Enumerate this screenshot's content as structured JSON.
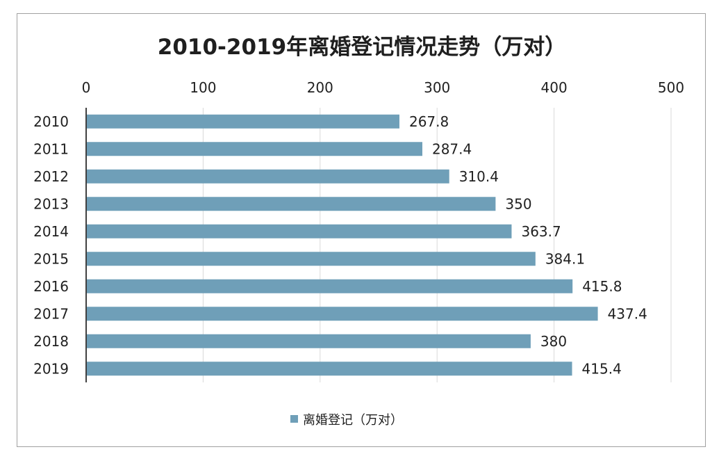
{
  "chart_data": {
    "type": "bar",
    "orientation": "horizontal",
    "title": "2010-2019年离婚登记情况走势（万对）",
    "categories": [
      "2010",
      "2011",
      "2012",
      "2013",
      "2014",
      "2015",
      "2016",
      "2017",
      "2018",
      "2019"
    ],
    "series": [
      {
        "name": "离婚登记（万对）",
        "color": "#6f9fb8",
        "values": [
          267.8,
          287.4,
          310.4,
          350,
          363.7,
          384.1,
          415.8,
          437.4,
          380,
          415.4
        ],
        "value_labels": [
          "267.8",
          "287.4",
          "310.4",
          "350",
          "363.7",
          "384.1",
          "415.8",
          "437.4",
          "380",
          "415.4"
        ]
      }
    ],
    "value_axis": {
      "min": 0,
      "max": 500,
      "ticks": [
        0,
        100,
        200,
        300,
        400,
        500
      ],
      "tick_labels": [
        "0",
        "100",
        "200",
        "300",
        "400",
        "500"
      ],
      "position": "top"
    },
    "grid": true,
    "legend_position": "bottom"
  }
}
